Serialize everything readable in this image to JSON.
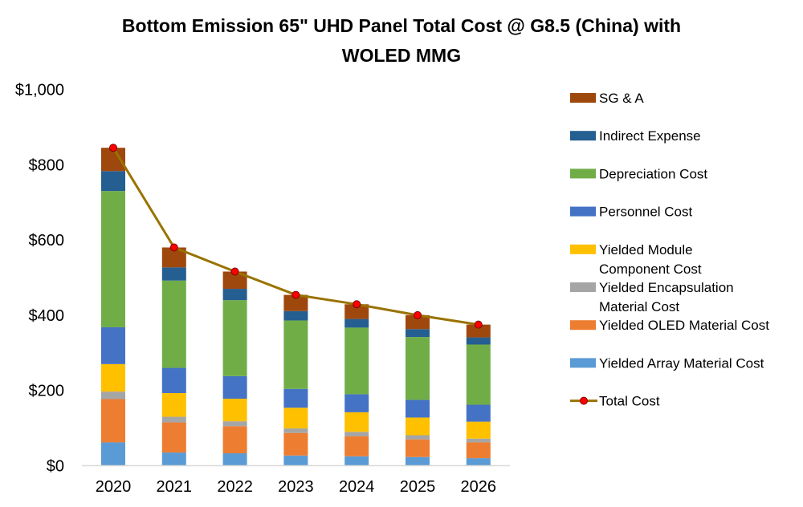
{
  "chart_data": {
    "type": "bar",
    "stacked": true,
    "title_lines": [
      "Bottom Emission 65\" UHD  Panel Total Cost @ G8.5 (China) with",
      "WOLED MMG"
    ],
    "categories": [
      "2020",
      "2021",
      "2022",
      "2023",
      "2024",
      "2025",
      "2026"
    ],
    "ylim": [
      0,
      1000
    ],
    "yticks": [
      0,
      200,
      400,
      600,
      800,
      1000
    ],
    "ytick_labels": [
      "$0",
      "$200",
      "$400",
      "$600",
      "$800",
      "$1,000"
    ],
    "grid": false,
    "legend_position": "right",
    "series": [
      {
        "name": "Yielded Array Material Cost",
        "color": "#5B9BD5",
        "values": [
          62,
          35,
          33,
          27,
          25,
          23,
          20
        ]
      },
      {
        "name": "Yielded OLED Material Cost",
        "color": "#ED7D31",
        "values": [
          115,
          80,
          72,
          60,
          53,
          47,
          42
        ]
      },
      {
        "name": "Yielded Encapsulation Material Cost",
        "color": "#A5A5A5",
        "values": [
          20,
          15,
          13,
          12,
          12,
          11,
          10
        ]
      },
      {
        "name": "Yielded Module Component Cost",
        "color": "#FFC000",
        "values": [
          73,
          63,
          60,
          55,
          52,
          47,
          45
        ]
      },
      {
        "name": "Personnel Cost",
        "color": "#4472C4",
        "values": [
          98,
          67,
          60,
          50,
          48,
          47,
          45
        ]
      },
      {
        "name": "Depreciation Cost",
        "color": "#70AD47",
        "values": [
          362,
          232,
          202,
          182,
          177,
          167,
          160
        ]
      },
      {
        "name": "Indirect Expense",
        "color": "#255E91",
        "values": [
          53,
          35,
          30,
          25,
          23,
          21,
          19
        ]
      },
      {
        "name": "SG & A",
        "color": "#9E480E",
        "values": [
          62,
          53,
          46,
          43,
          39,
          37,
          34
        ]
      }
    ],
    "total_series": {
      "name": "Total Cost",
      "line_color": "#997300",
      "marker_color": "#FF0000",
      "values": [
        845,
        580,
        516,
        454,
        429,
        400,
        375
      ]
    },
    "legend_items": [
      {
        "lines": [
          "SG & A"
        ],
        "color": "#9E480E",
        "kind": "box"
      },
      {
        "lines": [
          "Indirect Expense"
        ],
        "color": "#255E91",
        "kind": "box"
      },
      {
        "lines": [
          "Depreciation Cost"
        ],
        "color": "#70AD47",
        "kind": "box"
      },
      {
        "lines": [
          "Personnel Cost"
        ],
        "color": "#4472C4",
        "kind": "box"
      },
      {
        "lines": [
          "Yielded Module",
          "Component Cost"
        ],
        "color": "#FFC000",
        "kind": "box"
      },
      {
        "lines": [
          "Yielded Encapsulation",
          "Material Cost"
        ],
        "color": "#A5A5A5",
        "kind": "box"
      },
      {
        "lines": [
          "Yielded OLED Material Cost"
        ],
        "color": "#ED7D31",
        "kind": "box"
      },
      {
        "lines": [
          "Yielded Array Material Cost"
        ],
        "color": "#5B9BD5",
        "kind": "box"
      },
      {
        "lines": [
          "Total Cost"
        ],
        "color": "#997300",
        "kind": "line"
      }
    ]
  }
}
